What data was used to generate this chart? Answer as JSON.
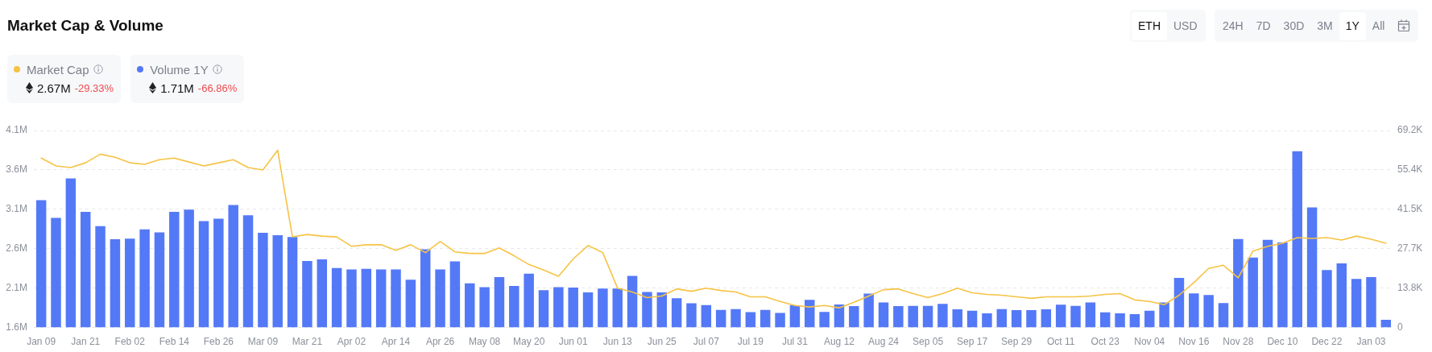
{
  "chart_data": {
    "type": "bar",
    "title": "Market Cap & Volume",
    "categories": [
      "Jan 09",
      null,
      null,
      "Jan 21",
      null,
      null,
      "Feb 02",
      null,
      null,
      "Feb 14",
      null,
      null,
      "Feb 26",
      null,
      null,
      "Mar 09",
      null,
      null,
      "Mar 21",
      null,
      null,
      "Apr 02",
      null,
      null,
      "Apr 14",
      null,
      null,
      "Apr 26",
      null,
      null,
      "May 08",
      null,
      null,
      "May 20",
      null,
      null,
      "Jun 01",
      null,
      null,
      "Jun 13",
      null,
      null,
      "Jun 25",
      null,
      null,
      "Jul 07",
      null,
      null,
      "Jul 19",
      null,
      null,
      "Jul 31",
      null,
      null,
      "Aug 12",
      null,
      null,
      "Aug 24",
      null,
      null,
      "Sep 05",
      null,
      null,
      "Sep 17",
      null,
      null,
      "Sep 29",
      null,
      null,
      "Oct 11",
      null,
      null,
      "Oct 23",
      null,
      null,
      "Nov 04",
      null,
      null,
      "Nov 16",
      null,
      null,
      "Nov 28",
      null,
      null,
      "Dec 10",
      null,
      null,
      "Dec 22",
      null,
      null,
      "Jan 03",
      null
    ],
    "series": [
      {
        "name": "Market Cap",
        "type": "line",
        "color": "#f6c343",
        "values": [
          3750000,
          3650000,
          3630000,
          3690000,
          3800000,
          3760000,
          3690000,
          3670000,
          3730000,
          3750000,
          3700000,
          3650000,
          3690000,
          3730000,
          3630000,
          3600000,
          3850000,
          2750000,
          2780000,
          2760000,
          2750000,
          2630000,
          2650000,
          2650000,
          2580000,
          2650000,
          2550000,
          2690000,
          2560000,
          2540000,
          2540000,
          2610000,
          2510000,
          2400000,
          2330000,
          2250000,
          2470000,
          2640000,
          2550000,
          2100000,
          2050000,
          1980000,
          2000000,
          2090000,
          2060000,
          2100000,
          2070000,
          2050000,
          1990000,
          1990000,
          1930000,
          1880000,
          1860000,
          1880000,
          1850000,
          1920000,
          2000000,
          2080000,
          2090000,
          2030000,
          1980000,
          2030000,
          2100000,
          2040000,
          2020000,
          2010000,
          1990000,
          1970000,
          1990000,
          1990000,
          1990000,
          2000000,
          2020000,
          2030000,
          1950000,
          1930000,
          1890000,
          2010000,
          2170000,
          2350000,
          2390000,
          2230000,
          2570000,
          2630000,
          2670000,
          2740000,
          2730000,
          2740000,
          2710000,
          2760000,
          2720000,
          2670000
        ]
      },
      {
        "name": "Volume 1Y",
        "axis": "y2",
        "color": "#5479f7",
        "values": [
          44700,
          38500,
          52400,
          40600,
          35600,
          31000,
          31200,
          34500,
          33400,
          40600,
          41400,
          37400,
          38200,
          43000,
          39400,
          33300,
          32400,
          31800,
          23400,
          23900,
          20900,
          20400,
          20600,
          20400,
          20400,
          16800,
          27500,
          20400,
          23200,
          15500,
          14200,
          17700,
          14600,
          18900,
          13100,
          14200,
          14000,
          12300,
          13700,
          13700,
          18100,
          12500,
          12300,
          10300,
          8500,
          7900,
          6200,
          6500,
          5400,
          6200,
          5100,
          7800,
          9700,
          5500,
          8100,
          7500,
          11900,
          8800,
          7500,
          7600,
          7600,
          8300,
          6400,
          5900,
          5000,
          6500,
          6100,
          6100,
          6400,
          8000,
          7600,
          8800,
          5300,
          5000,
          4700,
          5900,
          8800,
          17400,
          12000,
          11400,
          8600,
          31100,
          24600,
          30800,
          29900,
          61900,
          42200,
          20200,
          22500,
          17100,
          17700,
          2700
        ]
      }
    ],
    "ylim": [
      1600000,
      4100000
    ],
    "yticks": [
      {
        "value": 1600000,
        "label": "1.6M"
      },
      {
        "value": 2100000,
        "label": "2.1M"
      },
      {
        "value": 2600000,
        "label": "2.6M"
      },
      {
        "value": 3100000,
        "label": "3.1M"
      },
      {
        "value": 3600000,
        "label": "3.6M"
      },
      {
        "value": 4100000,
        "label": "4.1M"
      }
    ],
    "y2lim": [
      0,
      69200
    ],
    "y2ticks": [
      0,
      {
        "value": 13840,
        "label": "13.8K"
      },
      {
        "value": 27680,
        "label": "27.7K"
      },
      {
        "value": 41520,
        "label": "41.5K"
      },
      {
        "value": 55360,
        "label": "55.4K"
      },
      {
        "value": 69200,
        "label": "69.2K"
      }
    ],
    "grid": "y",
    "legend": "top left",
    "annotations": [
      "2.67M",
      "-29.33%",
      "1.71M",
      "-66.86%",
      "ETH",
      "USD",
      "24H",
      "7D",
      "30D",
      "3M",
      "1Y",
      "All"
    ]
  }
}
